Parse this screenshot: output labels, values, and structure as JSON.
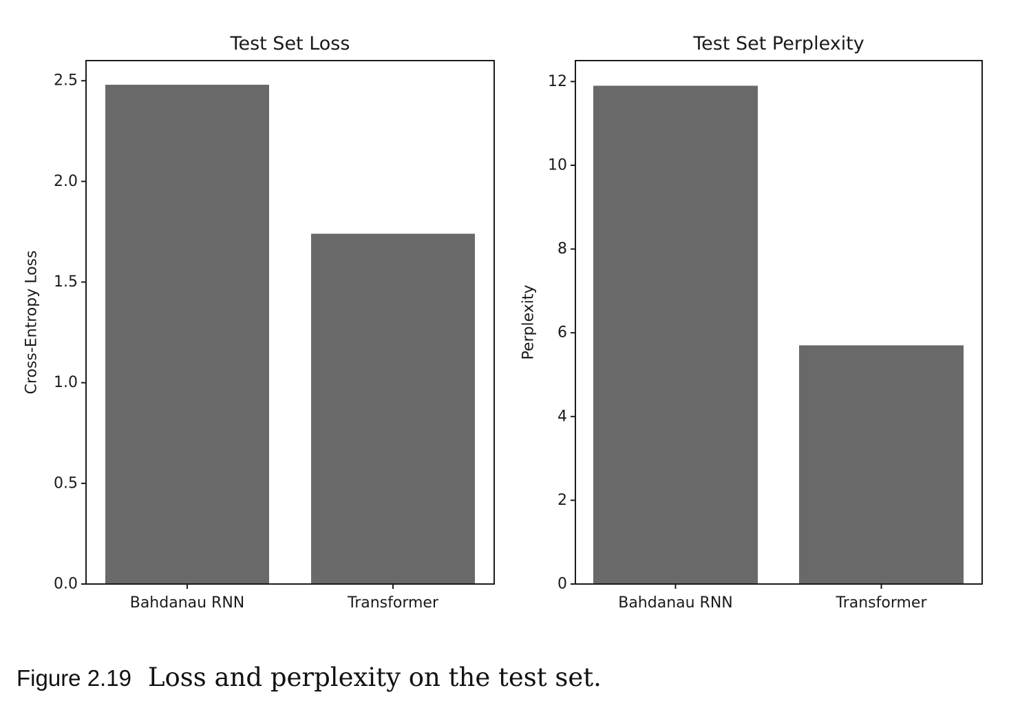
{
  "chart_data": [
    {
      "type": "bar",
      "title": "Test Set Loss",
      "xlabel": "",
      "ylabel": "Cross-Entropy Loss",
      "categories": [
        "Bahdanau RNN",
        "Transformer"
      ],
      "values": [
        2.48,
        1.74
      ],
      "ylim": [
        0,
        2.6
      ],
      "yticks": [
        "0.0",
        "0.5",
        "1.0",
        "1.5",
        "2.0",
        "2.5"
      ],
      "bar_color": "#696969",
      "grid": false,
      "legend": "none"
    },
    {
      "type": "bar",
      "title": "Test Set Perplexity",
      "xlabel": "",
      "ylabel": "Perplexity",
      "categories": [
        "Bahdanau RNN",
        "Transformer"
      ],
      "values": [
        11.9,
        5.7
      ],
      "ylim": [
        0,
        12.5
      ],
      "yticks": [
        "0",
        "2",
        "4",
        "6",
        "8",
        "10",
        "12"
      ],
      "bar_color": "#696969",
      "grid": false,
      "legend": "none"
    }
  ],
  "caption": {
    "label": "Figure 2.19",
    "text": "Loss and perplexity on the test set."
  }
}
